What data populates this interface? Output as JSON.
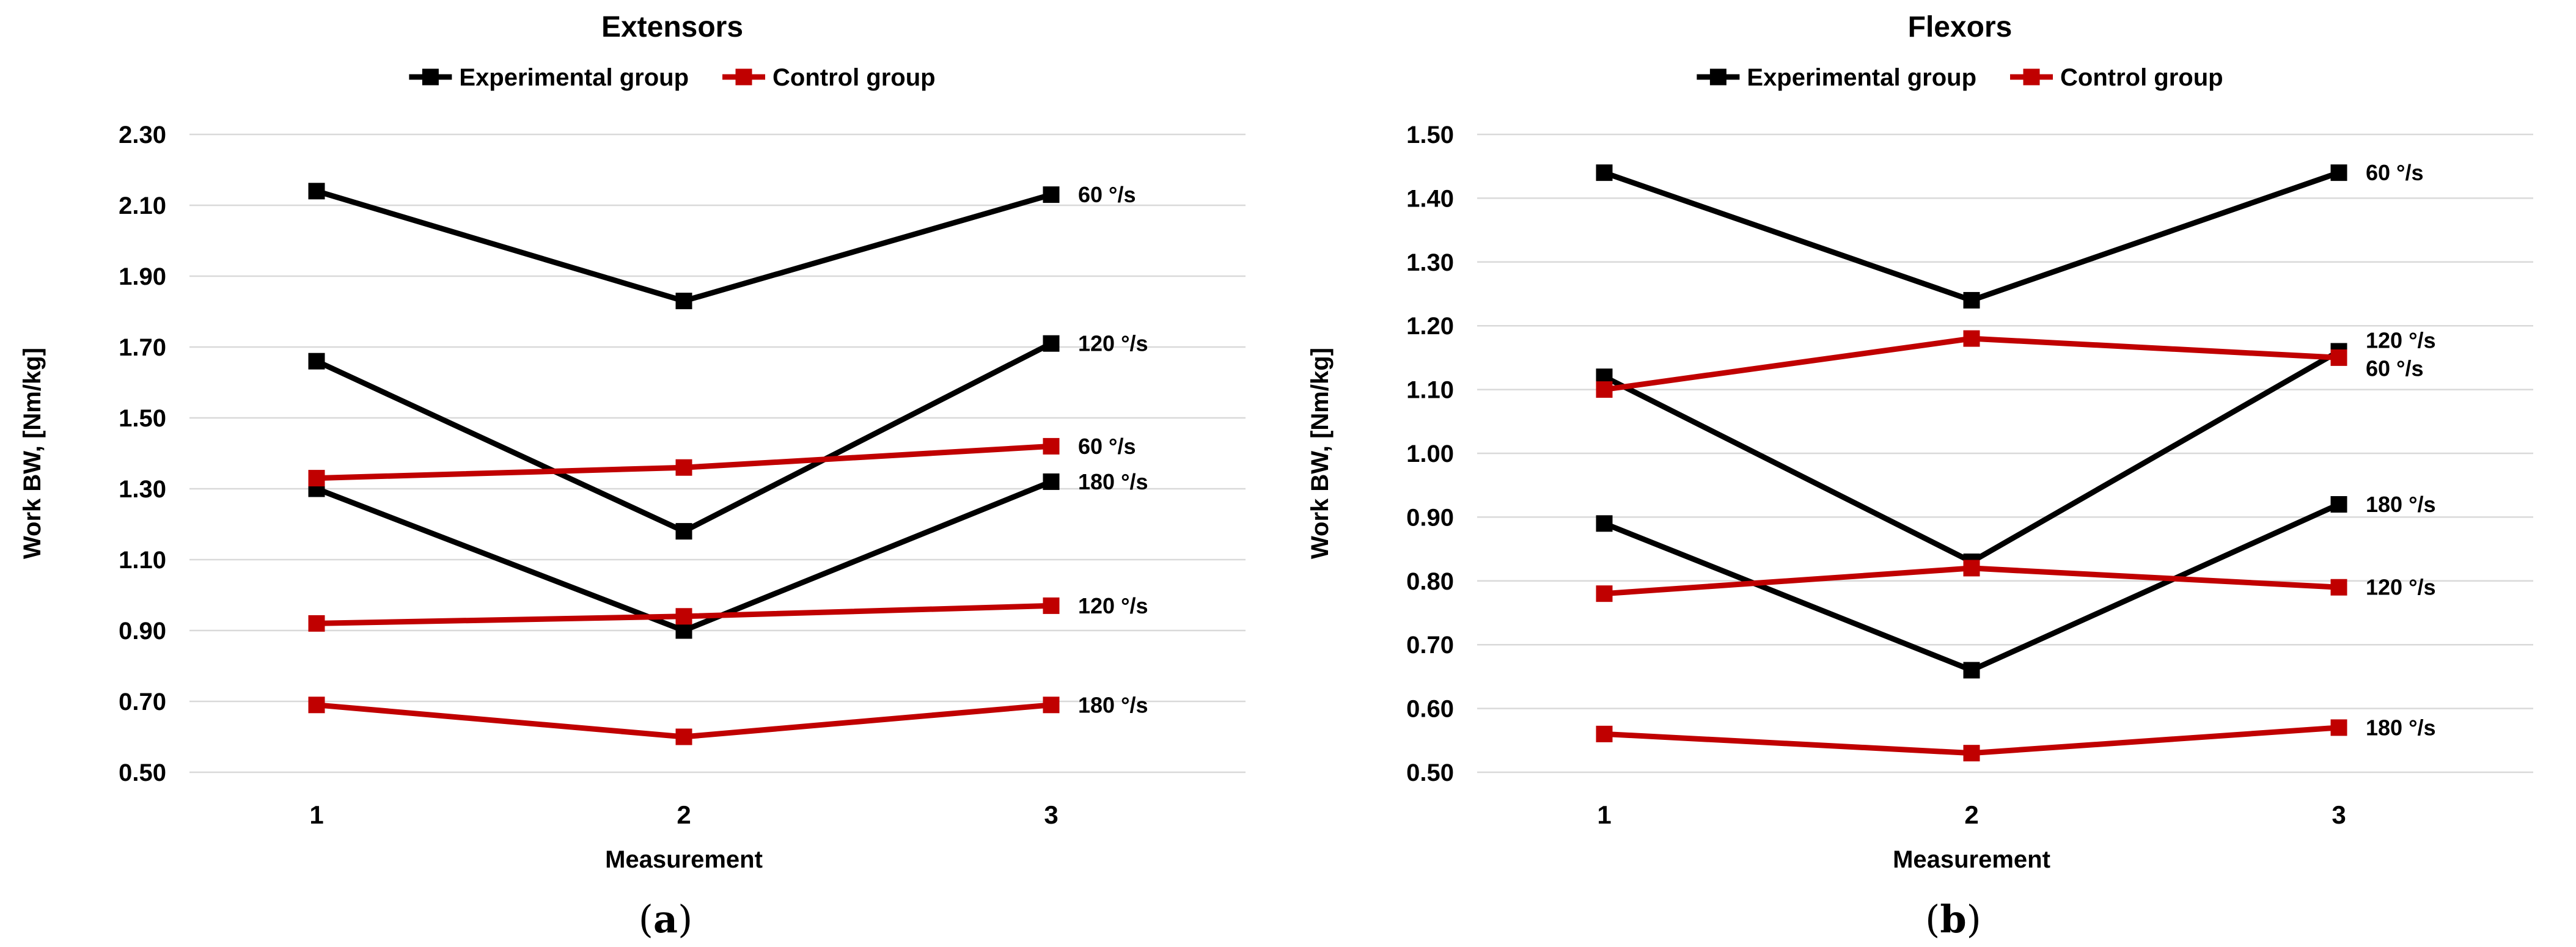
{
  "figure": {
    "background": "#ffffff",
    "caption_a": "(a)",
    "caption_b": "(b)"
  },
  "chart_data": [
    {
      "type": "line",
      "id": "extensors",
      "title": "Extensors",
      "xlabel": "Measurement",
      "ylabel": "Work BW, [Nm/kg]",
      "caption": "(a)",
      "x": [
        "1",
        "2",
        "3"
      ],
      "ylim": [
        0.5,
        2.3
      ],
      "ytick_step": 0.2,
      "y_ticks": [
        "2.30",
        "2.10",
        "1.90",
        "1.70",
        "1.50",
        "1.30",
        "1.10",
        "0.90",
        "0.70",
        "0.50"
      ],
      "grid": "horizontal",
      "grid_color": "#D9D9D9",
      "legend_position": "top",
      "legend": [
        {
          "label": "Experimental group",
          "color": "#000000"
        },
        {
          "label": "Control group",
          "color": "#C00000"
        }
      ],
      "series": [
        {
          "id": "exp-60",
          "name": "Experimental group 60 °/s",
          "group": "Experimental group",
          "color": "#000000",
          "values": [
            2.14,
            1.83,
            2.13
          ],
          "end_label": "60 °/s"
        },
        {
          "id": "exp-120",
          "name": "Experimental group 120 °/s",
          "group": "Experimental group",
          "color": "#000000",
          "values": [
            1.66,
            1.18,
            1.71
          ],
          "end_label": "120 °/s"
        },
        {
          "id": "exp-180",
          "name": "Experimental group 180 °/s",
          "group": "Experimental group",
          "color": "#000000",
          "values": [
            1.3,
            0.9,
            1.32
          ],
          "end_label": "180 °/s"
        },
        {
          "id": "ctrl-60",
          "name": "Control group 60 °/s",
          "group": "Control group",
          "color": "#C00000",
          "values": [
            1.33,
            1.36,
            1.42
          ],
          "end_label": "60 °/s"
        },
        {
          "id": "ctrl-120",
          "name": "Control group 120 °/s",
          "group": "Control group",
          "color": "#C00000",
          "values": [
            0.92,
            0.94,
            0.97
          ],
          "end_label": "120 °/s"
        },
        {
          "id": "ctrl-180",
          "name": "Control group 180 °/s",
          "group": "Control group",
          "color": "#C00000",
          "values": [
            0.69,
            0.6,
            0.69
          ],
          "end_label": "180 °/s"
        }
      ]
    },
    {
      "type": "line",
      "id": "flexors",
      "title": "Flexors",
      "xlabel": "Measurement",
      "ylabel": "Work BW, [Nm/kg]",
      "caption": "(b)",
      "x": [
        "1",
        "2",
        "3"
      ],
      "ylim": [
        0.5,
        1.5
      ],
      "ytick_step": 0.1,
      "y_ticks": [
        "1.50",
        "1.40",
        "1.30",
        "1.20",
        "1.10",
        "1.00",
        "0.90",
        "0.80",
        "0.70",
        "0.60",
        "0.50"
      ],
      "grid": "horizontal",
      "grid_color": "#D9D9D9",
      "legend_position": "top",
      "legend": [
        {
          "label": "Experimental group",
          "color": "#000000"
        },
        {
          "label": "Control group",
          "color": "#C00000"
        }
      ],
      "series": [
        {
          "id": "exp-60",
          "name": "Experimental group 60 °/s",
          "group": "Experimental group",
          "color": "#000000",
          "values": [
            1.44,
            1.24,
            1.44
          ],
          "end_label": "60 °/s"
        },
        {
          "id": "exp-120",
          "name": "Experimental group 120 °/s",
          "group": "Experimental group",
          "color": "#000000",
          "values": [
            1.12,
            0.83,
            1.16
          ],
          "end_label": "120 °/s"
        },
        {
          "id": "exp-180",
          "name": "Experimental group 180 °/s",
          "group": "Experimental group",
          "color": "#000000",
          "values": [
            0.89,
            0.66,
            0.92
          ],
          "end_label": "180 °/s"
        },
        {
          "id": "ctrl-60",
          "name": "Control group 60 °/s",
          "group": "Control group",
          "color": "#C00000",
          "values": [
            1.1,
            1.18,
            1.15
          ],
          "end_label": "60 °/s"
        },
        {
          "id": "ctrl-120",
          "name": "Control group 120 °/s",
          "group": "Control group",
          "color": "#C00000",
          "values": [
            0.78,
            0.82,
            0.79
          ],
          "end_label": "120 °/s"
        },
        {
          "id": "ctrl-180",
          "name": "Control group 180 °/s",
          "group": "Control group",
          "color": "#C00000",
          "values": [
            0.56,
            0.53,
            0.57
          ],
          "end_label": "180 °/s"
        }
      ]
    }
  ]
}
